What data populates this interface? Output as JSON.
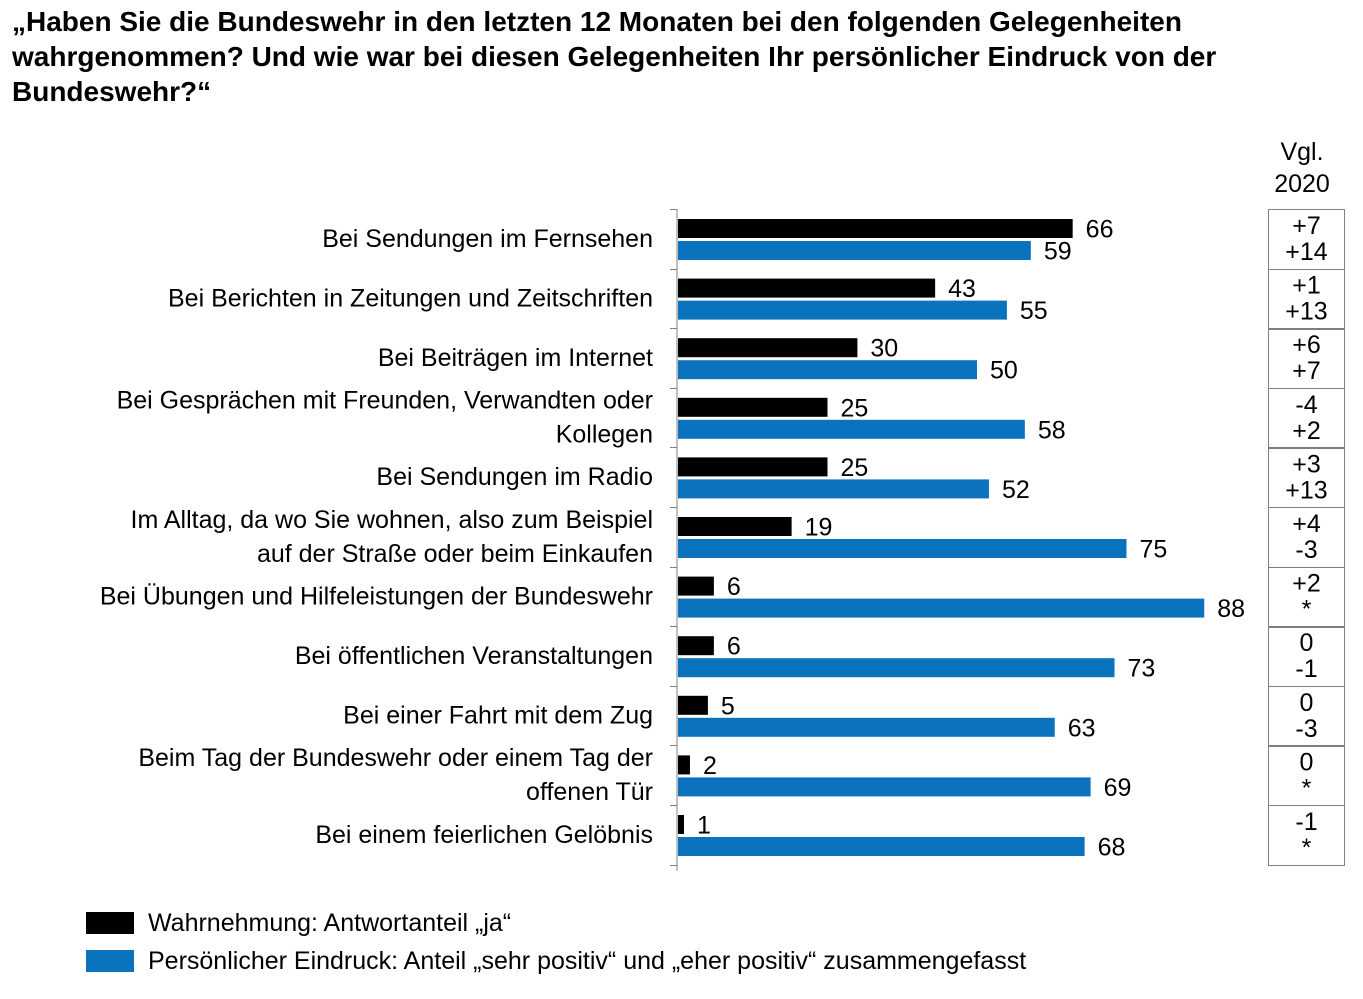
{
  "title": "„Haben Sie die Bundeswehr in den letzten 12 Monaten bei den folgenden Gelegenheiten wahrgenommen? Und wie war bei diesen Gelegenheiten Ihr persönlicher Eindruck von der Bundeswehr?“",
  "comparison_header": [
    "Vgl.",
    "2020"
  ],
  "colors": {
    "series_ja": "#000000",
    "series_positiv": "#0b72be",
    "comparison_border": "#7f7f7f"
  },
  "legend": [
    {
      "label": "Wahrnehmung: Antwortanteil „ja“",
      "color": "#000000"
    },
    {
      "label": "Persönlicher Eindruck: Anteil „sehr positiv“ und „eher positiv“ zusammengefasst",
      "color": "#0b72be"
    }
  ],
  "chart_data": {
    "type": "bar",
    "orientation": "horizontal",
    "categories": [
      [
        "Bei Sendungen im Fernsehen"
      ],
      [
        "Bei Berichten in Zeitungen und Zeitschriften"
      ],
      [
        "Bei Beiträgen im Internet"
      ],
      [
        "Bei Gesprächen mit Freunden, Verwandten oder",
        "Kollegen"
      ],
      [
        "Bei Sendungen im Radio"
      ],
      [
        "Im Alltag, da wo Sie wohnen, also zum Beispiel",
        "auf der Straße oder beim Einkaufen"
      ],
      [
        "Bei Übungen und Hilfeleistungen der Bundeswehr"
      ],
      [
        "Bei öffentlichen Veranstaltungen"
      ],
      [
        "Bei einer Fahrt mit dem Zug"
      ],
      [
        "Beim Tag der Bundeswehr oder einem Tag der",
        "offenen Tür"
      ],
      [
        "Bei einem feierlichen Gelöbnis"
      ]
    ],
    "series": [
      {
        "name": "Wahrnehmung: Antwortanteil „ja“",
        "values": [
          66,
          43,
          30,
          25,
          25,
          19,
          6,
          6,
          5,
          2,
          1
        ]
      },
      {
        "name": "Persönlicher Eindruck: Anteil „sehr positiv“ und „eher positiv“ zusammengefasst",
        "values": [
          59,
          55,
          50,
          58,
          52,
          75,
          88,
          73,
          63,
          69,
          68
        ]
      }
    ],
    "comparison_2020": [
      [
        "+7",
        "+14"
      ],
      [
        "+1",
        "+13"
      ],
      [
        "+6",
        "+7"
      ],
      [
        "-4",
        "+2"
      ],
      [
        "+3",
        "+13"
      ],
      [
        "+4",
        "-3"
      ],
      [
        "+2",
        "*"
      ],
      [
        "0",
        "-1"
      ],
      [
        "0",
        "-3"
      ],
      [
        "0",
        "*"
      ],
      [
        "-1",
        "*"
      ]
    ],
    "xlim": [
      0,
      100
    ],
    "grid": false,
    "legend_position": "bottom-left"
  }
}
